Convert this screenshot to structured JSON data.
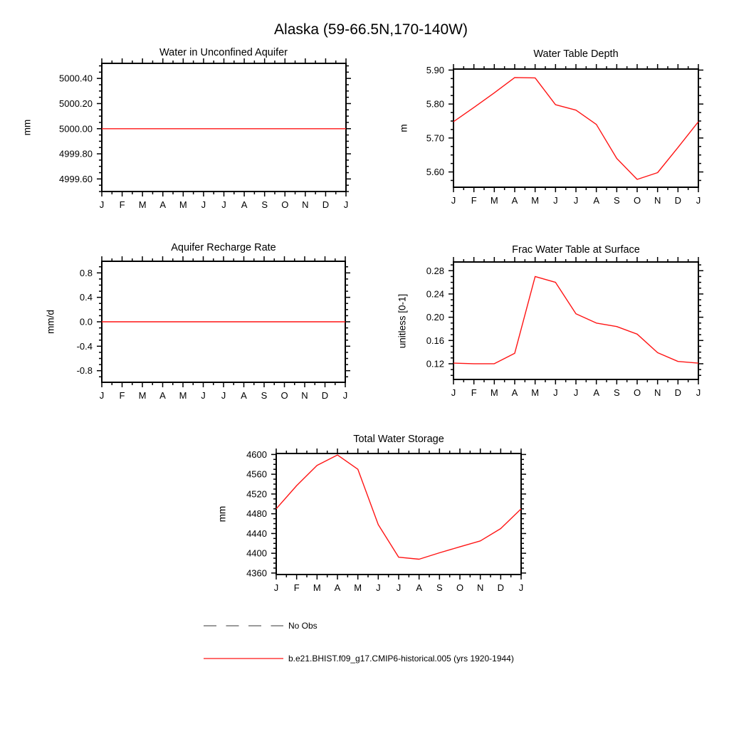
{
  "figure": {
    "title": "Alaska (59-66.5N,170-140W)"
  },
  "months": [
    "J",
    "F",
    "M",
    "A",
    "M",
    "J",
    "J",
    "A",
    "S",
    "O",
    "N",
    "D",
    "J"
  ],
  "colors": {
    "series": "#ff1414",
    "no_obs": "#9a9a9a",
    "axis": "#000000"
  },
  "chart_data": [
    {
      "type": "line",
      "title": "Water in Unconfined Aquifer",
      "ylabel": "mm",
      "xlabel": "",
      "categories": [
        "J",
        "F",
        "M",
        "A",
        "M",
        "J",
        "J",
        "A",
        "S",
        "O",
        "N",
        "D",
        "J"
      ],
      "values": [
        5000.0,
        5000.0,
        5000.0,
        5000.0,
        5000.0,
        5000.0,
        5000.0,
        5000.0,
        5000.0,
        5000.0,
        5000.0,
        5000.0,
        5000.0
      ],
      "ylim": [
        4999.5,
        5000.52
      ],
      "yticks": [
        4999.6,
        4999.8,
        5000.0,
        5000.2,
        5000.4
      ],
      "ytick_labels": [
        "4999.60",
        "4999.80",
        "5000.00",
        "5000.20",
        "5000.40"
      ],
      "y_minor_step": 0.05,
      "grid": false,
      "line_color": "#ff1414"
    },
    {
      "type": "line",
      "title": "Water Table Depth",
      "ylabel": "m",
      "xlabel": "",
      "categories": [
        "J",
        "F",
        "M",
        "A",
        "M",
        "J",
        "J",
        "A",
        "S",
        "O",
        "N",
        "D",
        "J"
      ],
      "values": [
        5.748,
        5.79,
        5.833,
        5.878,
        5.877,
        5.798,
        5.782,
        5.74,
        5.64,
        5.578,
        5.598,
        5.672,
        5.748
      ],
      "ylim": [
        5.555,
        5.903
      ],
      "yticks": [
        5.6,
        5.7,
        5.8,
        5.9
      ],
      "ytick_labels": [
        "5.60",
        "5.70",
        "5.80",
        "5.90"
      ],
      "y_minor_step": 0.025,
      "grid": false,
      "line_color": "#ff1414"
    },
    {
      "type": "line",
      "title": "Aquifer Recharge Rate",
      "ylabel": "mm/d",
      "xlabel": "",
      "categories": [
        "J",
        "F",
        "M",
        "A",
        "M",
        "J",
        "J",
        "A",
        "S",
        "O",
        "N",
        "D",
        "J"
      ],
      "values": [
        0.0,
        0.0,
        0.0,
        0.0,
        0.0,
        0.0,
        0.0,
        0.0,
        0.0,
        0.0,
        0.0,
        0.0,
        0.0
      ],
      "ylim": [
        -0.99,
        0.99
      ],
      "yticks": [
        -0.8,
        -0.4,
        0.0,
        0.4,
        0.8
      ],
      "ytick_labels": [
        "-0.8",
        "-0.4",
        "0.0",
        "0.4",
        "0.8"
      ],
      "y_minor_step": 0.1,
      "grid": false,
      "line_color": "#ff1414"
    },
    {
      "type": "line",
      "title": "Frac Water Table at Surface",
      "ylabel": "unitless [0-1]",
      "xlabel": "",
      "categories": [
        "J",
        "F",
        "M",
        "A",
        "M",
        "J",
        "J",
        "A",
        "S",
        "O",
        "N",
        "D",
        "J"
      ],
      "values": [
        0.121,
        0.12,
        0.12,
        0.138,
        0.27,
        0.26,
        0.206,
        0.19,
        0.184,
        0.171,
        0.139,
        0.124,
        0.121
      ],
      "ylim": [
        0.093,
        0.295
      ],
      "yticks": [
        0.12,
        0.16,
        0.2,
        0.24,
        0.28
      ],
      "ytick_labels": [
        "0.12",
        "0.16",
        "0.20",
        "0.24",
        "0.28"
      ],
      "y_minor_step": 0.01,
      "grid": false,
      "line_color": "#ff1414"
    },
    {
      "type": "line",
      "title": "Total Water Storage",
      "ylabel": "mm",
      "xlabel": "",
      "categories": [
        "J",
        "F",
        "M",
        "A",
        "M",
        "J",
        "J",
        "A",
        "S",
        "O",
        "N",
        "D",
        "J"
      ],
      "values": [
        4490,
        4537,
        4578,
        4599,
        4570,
        4458,
        4392,
        4388,
        4401,
        4413,
        4425,
        4450,
        4490
      ],
      "ylim": [
        4357,
        4602
      ],
      "yticks": [
        4360,
        4400,
        4440,
        4480,
        4520,
        4560,
        4600
      ],
      "ytick_labels": [
        "4360",
        "4400",
        "4440",
        "4480",
        "4520",
        "4560",
        "4600"
      ],
      "y_minor_step": 10,
      "grid": false,
      "line_color": "#ff1414"
    }
  ],
  "legend": {
    "items": [
      {
        "label": "No Obs",
        "color": "#9a9a9a",
        "line_style": "dashed"
      },
      {
        "label": "b.e21.BHIST.f09_g17.CMIP6-historical.005 (yrs 1920-1944)",
        "color": "#ff1414",
        "line_style": "solid"
      }
    ]
  }
}
